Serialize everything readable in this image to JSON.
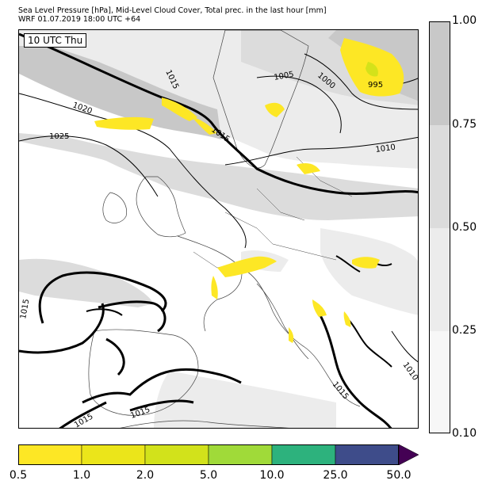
{
  "header": {
    "title_line1": "Sea Level Pressure [hPa], Mid-Level Cloud Cover, Total prec. in the last hour [mm]",
    "title_line2": "WRF 01.07.2019 18:00 UTC +64"
  },
  "map": {
    "valid_time_label": "10 UTC Thu",
    "isobar_labels": [
      "1015",
      "1020",
      "1025",
      "1015",
      "1005",
      "1000",
      "995",
      "1010",
      "1015",
      "1015",
      "1015",
      "1015",
      "1010"
    ],
    "colors": {
      "cloud_light": "#ececec",
      "cloud_mid": "#dcdcdc",
      "cloud_dark": "#c8c8c8",
      "coastline": "#444444",
      "isobar": "#000000",
      "precip_light": "#fde725",
      "precip_mid": "#d4e21a"
    }
  },
  "cloud_colorbar": {
    "ticks": [
      "1.00",
      "0.75",
      "0.50",
      "0.25",
      "0.10"
    ],
    "colors": [
      "#c8c8c8",
      "#dcdcdc",
      "#ececec",
      "#f7f7f7"
    ]
  },
  "precip_colorbar": {
    "ticks": [
      "0.5",
      "1.0",
      "2.0",
      "5.0",
      "10.0",
      "25.0",
      "50.0"
    ],
    "colors": [
      "#fde725",
      "#ebe51a",
      "#d2e21b",
      "#a0da39",
      "#2db27d",
      "#3e4c8a",
      "#440154"
    ]
  }
}
